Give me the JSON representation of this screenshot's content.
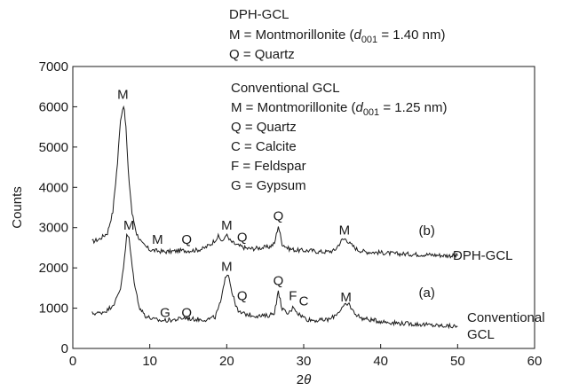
{
  "chart_data": {
    "type": "line",
    "xlabel_main": "2",
    "xlabel_italic": "θ",
    "ylabel": "Counts",
    "xlim": [
      0,
      60
    ],
    "ylim": [
      0,
      7000
    ],
    "x_ticks": [
      0,
      10,
      20,
      30,
      40,
      50,
      60
    ],
    "y_ticks": [
      0,
      1000,
      2000,
      3000,
      4000,
      5000,
      6000,
      7000
    ],
    "series": [
      {
        "name": "DPH-GCL",
        "curve_label": "(b)",
        "x": [
          2.5,
          3.5,
          4.5,
          5.2,
          5.8,
          6.2,
          6.6,
          6.9,
          7.2,
          7.7,
          8.3,
          9.0,
          10.0,
          11.0,
          12.0,
          13.0,
          14.0,
          15.0,
          16.0,
          17.0,
          18.0,
          18.9,
          19.5,
          19.9,
          20.3,
          20.8,
          21.4,
          22.0,
          22.7,
          23.5,
          24.5,
          25.5,
          26.2,
          26.7,
          27.2,
          28.0,
          29.0,
          30.0,
          31.0,
          32.0,
          33.0,
          34.0,
          35.0,
          35.5,
          36.0,
          37.0,
          38.0,
          40.0,
          42.0,
          44.0,
          46.0,
          48.0,
          50.0
        ],
        "y": [
          2650,
          2720,
          2870,
          3400,
          4600,
          5700,
          6050,
          5500,
          4400,
          3350,
          2850,
          2600,
          2450,
          2420,
          2400,
          2410,
          2430,
          2430,
          2440,
          2480,
          2600,
          2780,
          2640,
          2850,
          2700,
          2620,
          2560,
          2520,
          2480,
          2480,
          2500,
          2520,
          2600,
          3050,
          2600,
          2480,
          2440,
          2430,
          2430,
          2400,
          2400,
          2430,
          2700,
          2720,
          2600,
          2450,
          2400,
          2380,
          2350,
          2340,
          2330,
          2310,
          2300
        ],
        "peak_labels": [
          {
            "text": "M",
            "x": 6.5,
            "y": 6200
          },
          {
            "text": "M",
            "x": 11.0,
            "y": 2600
          },
          {
            "text": "Q",
            "x": 14.8,
            "y": 2600
          },
          {
            "text": "M",
            "x": 20.0,
            "y": 2950
          },
          {
            "text": "Q",
            "x": 22.0,
            "y": 2650
          },
          {
            "text": "Q",
            "x": 26.7,
            "y": 3180
          },
          {
            "text": "M",
            "x": 35.3,
            "y": 2830
          },
          {
            "text": "(b)",
            "x": 46.0,
            "y": 2820
          }
        ]
      },
      {
        "name_lines": [
          "Conventional",
          "GCL"
        ],
        "curve_label": "(a)",
        "x": [
          2.5,
          3.5,
          4.5,
          5.5,
          6.2,
          6.7,
          7.0,
          7.3,
          7.6,
          8.1,
          8.7,
          9.5,
          10.5,
          11.5,
          12.5,
          13.5,
          14.5,
          15.5,
          16.5,
          17.5,
          18.5,
          19.3,
          19.8,
          20.2,
          20.8,
          21.5,
          22.5,
          23.5,
          24.5,
          25.5,
          26.2,
          26.7,
          27.2,
          27.8,
          28.3,
          28.7,
          29.2,
          29.8,
          30.5,
          31.5,
          32.5,
          33.5,
          34.5,
          35.2,
          35.9,
          36.5,
          37.5,
          39.0,
          41.0,
          43.0,
          45.0,
          47.0,
          48.5,
          50.0
        ],
        "y": [
          870,
          880,
          950,
          1150,
          1500,
          2200,
          2800,
          2750,
          2200,
          1500,
          1000,
          800,
          720,
          690,
          700,
          720,
          760,
          730,
          720,
          720,
          780,
          1200,
          1800,
          1850,
          1300,
          900,
          850,
          820,
          800,
          820,
          900,
          1400,
          1000,
          850,
          920,
          1050,
          880,
          800,
          720,
          700,
          700,
          730,
          900,
          1050,
          1100,
          900,
          750,
          700,
          650,
          620,
          600,
          570,
          560,
          540
        ],
        "peak_labels": [
          {
            "text": "M",
            "x": 7.3,
            "y": 2950
          },
          {
            "text": "G",
            "x": 12.0,
            "y": 780
          },
          {
            "text": "Q",
            "x": 14.8,
            "y": 780
          },
          {
            "text": "M",
            "x": 20.0,
            "y": 1930
          },
          {
            "text": "Q",
            "x": 22.0,
            "y": 1200
          },
          {
            "text": "Q",
            "x": 26.7,
            "y": 1570
          },
          {
            "text": "F",
            "x": 28.6,
            "y": 1200
          },
          {
            "text": "C",
            "x": 30.0,
            "y": 1070
          },
          {
            "text": "M",
            "x": 35.5,
            "y": 1170
          },
          {
            "text": "(a)",
            "x": 46.0,
            "y": 1280
          }
        ]
      }
    ],
    "legend_top": {
      "lines": [
        "DPH-GCL",
        "M = Montmorillonite  (",
        "Q = Quartz"
      ],
      "d_label": "d",
      "d_sub": "001",
      "d_value": " = 1.40 nm)"
    },
    "legend_inner": {
      "lines": [
        "Conventional GCL",
        "M = Montmorillonite (",
        "Q = Quartz",
        "C = Calcite",
        "F =  Feldspar",
        "G = Gypsum"
      ],
      "d_label": "d",
      "d_sub": "001",
      "d_value": " = 1.25 nm)"
    }
  }
}
